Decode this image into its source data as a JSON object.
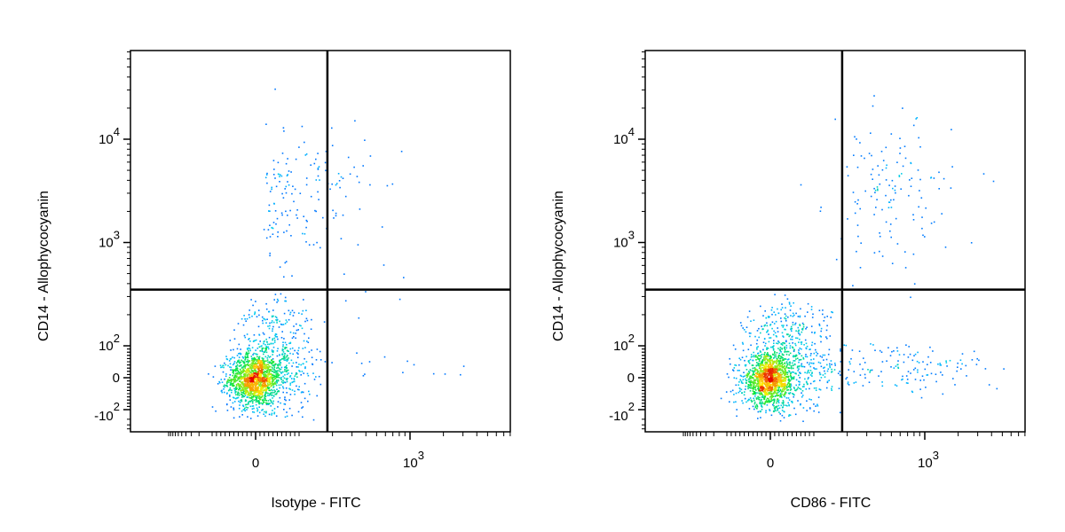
{
  "chart_data": [
    {
      "type": "scatter",
      "title": "",
      "xlabel": "Isotype - FITC",
      "ylabel": "CD14 - Allophycocyanin",
      "x_scale": "biexponential",
      "y_scale": "biexponential",
      "x_ticks": [
        {
          "value": 0,
          "label": "0"
        },
        {
          "value": 1000,
          "label": "10^3"
        }
      ],
      "y_ticks": [
        {
          "value": -100,
          "label": "-10^2"
        },
        {
          "value": 0,
          "label": "0"
        },
        {
          "value": 100,
          "label": "10^2"
        },
        {
          "value": 1000,
          "label": "10^3"
        },
        {
          "value": 10000,
          "label": "10^4"
        }
      ],
      "quadrant_gate": {
        "x": 180,
        "y": 350
      },
      "populations": [
        {
          "name": "",
          "center": [
            -5,
            -5
          ],
          "spread": [
            30,
            40
          ],
          "count": 1300
        },
        {
          "name": "",
          "center": [
            40,
            60
          ],
          "spread": [
            45,
            90
          ],
          "count": 550
        },
        {
          "name": "",
          "center": [
            100,
            2800
          ],
          "spread": [
            0.32,
            0.38
          ],
          "count": 160
        },
        {
          "name": "",
          "center": [
            600,
            60
          ],
          "spread": [
            0.5,
            0.6
          ],
          "count": 25
        }
      ]
    },
    {
      "type": "scatter",
      "title": "",
      "xlabel": "CD86 - FITC",
      "ylabel": "CD14 - Allophycocyanin",
      "x_scale": "biexponential",
      "y_scale": "biexponential",
      "x_ticks": [
        {
          "value": 0,
          "label": "0"
        },
        {
          "value": 1000,
          "label": "10^3"
        }
      ],
      "y_ticks": [
        {
          "value": -100,
          "label": "-10^2"
        },
        {
          "value": 0,
          "label": "0"
        },
        {
          "value": 100,
          "label": "10^2"
        },
        {
          "value": 1000,
          "label": "10^3"
        },
        {
          "value": 10000,
          "label": "10^4"
        }
      ],
      "quadrant_gate": {
        "x": 180,
        "y": 350
      },
      "populations": [
        {
          "name": "",
          "center": [
            -5,
            -5
          ],
          "spread": [
            30,
            40
          ],
          "count": 1300
        },
        {
          "name": "",
          "center": [
            40,
            70
          ],
          "spread": [
            50,
            90
          ],
          "count": 550
        },
        {
          "name": "",
          "center": [
            500,
            3000
          ],
          "spread": [
            0.28,
            0.35
          ],
          "count": 140
        },
        {
          "name": "",
          "center": [
            500,
            30
          ],
          "spread": [
            0.5,
            40
          ],
          "count": 170
        }
      ]
    }
  ]
}
